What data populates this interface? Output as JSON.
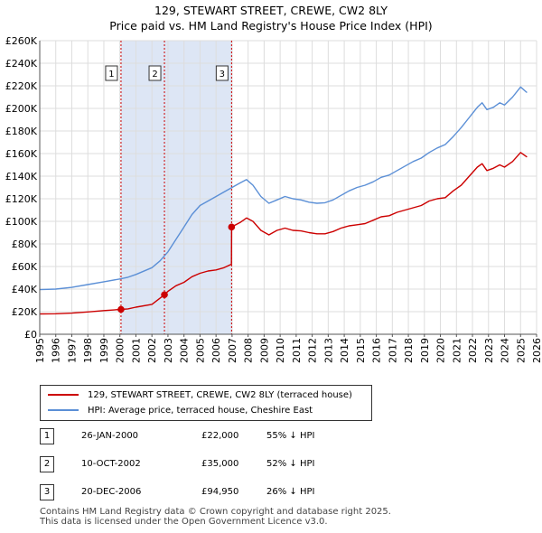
{
  "chart_data": {
    "type": "line",
    "title": "129, STEWART STREET, CREWE, CW2 8LY",
    "subtitle": "Price paid vs. HM Land Registry's House Price Index (HPI)",
    "x_ticks": [
      "1995",
      "1996",
      "1997",
      "1998",
      "1999",
      "2000",
      "2001",
      "2002",
      "2003",
      "2004",
      "2005",
      "2006",
      "2007",
      "2008",
      "2009",
      "2010",
      "2011",
      "2012",
      "2013",
      "2014",
      "2015",
      "2016",
      "2017",
      "2018",
      "2019",
      "2020",
      "2021",
      "2022",
      "2023",
      "2024",
      "2025",
      "2026"
    ],
    "y_ticks": [
      "£0",
      "£20K",
      "£40K",
      "£60K",
      "£80K",
      "£100K",
      "£120K",
      "£140K",
      "£160K",
      "£180K",
      "£200K",
      "£220K",
      "£240K",
      "£260K"
    ],
    "xlim": [
      1995,
      2026
    ],
    "ylim": [
      0,
      260000
    ],
    "grid": true,
    "colors": {
      "property": "#cc0000",
      "hpi": "#5b8fd6",
      "shade": "#dde6f5",
      "grid": "#dddddd"
    },
    "series": [
      {
        "name": "129, STEWART STREET, CREWE, CW2 8LY (terraced house)",
        "color": "#cc0000",
        "points": [
          [
            1995.0,
            18000
          ],
          [
            1996.0,
            18200
          ],
          [
            1997.0,
            18700
          ],
          [
            1998.0,
            19800
          ],
          [
            1999.0,
            21000
          ],
          [
            2000.07,
            22000
          ],
          [
            2000.5,
            22500
          ],
          [
            2001.0,
            24000
          ],
          [
            2002.0,
            26500
          ],
          [
            2002.78,
            35000
          ],
          [
            2003.0,
            38000
          ],
          [
            2003.5,
            43000
          ],
          [
            2004.0,
            46000
          ],
          [
            2004.5,
            51000
          ],
          [
            2005.0,
            54000
          ],
          [
            2005.5,
            56000
          ],
          [
            2006.0,
            57000
          ],
          [
            2006.5,
            59000
          ],
          [
            2006.96,
            62000
          ],
          [
            2006.97,
            94950
          ],
          [
            2007.5,
            99000
          ],
          [
            2007.9,
            103000
          ],
          [
            2008.3,
            100000
          ],
          [
            2008.8,
            92000
          ],
          [
            2009.3,
            88000
          ],
          [
            2009.8,
            92000
          ],
          [
            2010.3,
            94000
          ],
          [
            2010.8,
            92000
          ],
          [
            2011.3,
            91500
          ],
          [
            2011.8,
            90000
          ],
          [
            2012.3,
            89000
          ],
          [
            2012.8,
            89000
          ],
          [
            2013.3,
            91000
          ],
          [
            2013.8,
            94000
          ],
          [
            2014.3,
            96000
          ],
          [
            2014.8,
            97000
          ],
          [
            2015.3,
            98000
          ],
          [
            2015.8,
            101000
          ],
          [
            2016.3,
            104000
          ],
          [
            2016.8,
            105000
          ],
          [
            2017.3,
            108000
          ],
          [
            2017.8,
            110000
          ],
          [
            2018.3,
            112000
          ],
          [
            2018.8,
            114000
          ],
          [
            2019.3,
            118000
          ],
          [
            2019.8,
            120000
          ],
          [
            2020.3,
            121000
          ],
          [
            2020.8,
            127000
          ],
          [
            2021.3,
            132000
          ],
          [
            2021.8,
            140000
          ],
          [
            2022.3,
            148000
          ],
          [
            2022.6,
            151000
          ],
          [
            2022.9,
            145000
          ],
          [
            2023.3,
            147000
          ],
          [
            2023.7,
            150000
          ],
          [
            2024.0,
            148000
          ],
          [
            2024.5,
            153000
          ],
          [
            2025.0,
            161000
          ],
          [
            2025.4,
            157000
          ]
        ]
      },
      {
        "name": "HPI: Average price, terraced house, Cheshire East",
        "color": "#5b8fd6",
        "points": [
          [
            1995.0,
            39500
          ],
          [
            1996.0,
            40000
          ],
          [
            1997.0,
            41500
          ],
          [
            1998.0,
            44000
          ],
          [
            1999.0,
            46500
          ],
          [
            2000.0,
            49000
          ],
          [
            2000.5,
            50500
          ],
          [
            2001.0,
            53000
          ],
          [
            2002.0,
            59000
          ],
          [
            2002.5,
            65000
          ],
          [
            2003.0,
            73000
          ],
          [
            2003.5,
            84000
          ],
          [
            2004.0,
            95000
          ],
          [
            2004.5,
            106000
          ],
          [
            2005.0,
            114000
          ],
          [
            2005.5,
            118000
          ],
          [
            2006.0,
            122000
          ],
          [
            2006.5,
            126000
          ],
          [
            2007.0,
            130000
          ],
          [
            2007.5,
            134000
          ],
          [
            2007.9,
            137000
          ],
          [
            2008.3,
            132000
          ],
          [
            2008.8,
            122000
          ],
          [
            2009.3,
            116000
          ],
          [
            2009.8,
            119000
          ],
          [
            2010.3,
            122000
          ],
          [
            2010.8,
            120000
          ],
          [
            2011.3,
            119000
          ],
          [
            2011.8,
            117000
          ],
          [
            2012.3,
            116000
          ],
          [
            2012.8,
            116500
          ],
          [
            2013.3,
            119000
          ],
          [
            2013.8,
            123000
          ],
          [
            2014.3,
            127000
          ],
          [
            2014.8,
            130000
          ],
          [
            2015.3,
            132000
          ],
          [
            2015.8,
            135000
          ],
          [
            2016.3,
            139000
          ],
          [
            2016.8,
            141000
          ],
          [
            2017.3,
            145000
          ],
          [
            2017.8,
            149000
          ],
          [
            2018.3,
            153000
          ],
          [
            2018.8,
            156000
          ],
          [
            2019.3,
            161000
          ],
          [
            2019.8,
            165000
          ],
          [
            2020.3,
            168000
          ],
          [
            2020.8,
            175000
          ],
          [
            2021.3,
            183000
          ],
          [
            2021.8,
            192000
          ],
          [
            2022.3,
            201000
          ],
          [
            2022.6,
            205000
          ],
          [
            2022.9,
            199000
          ],
          [
            2023.3,
            201000
          ],
          [
            2023.7,
            205000
          ],
          [
            2024.0,
            203000
          ],
          [
            2024.5,
            210000
          ],
          [
            2025.0,
            219000
          ],
          [
            2025.4,
            214000
          ]
        ]
      }
    ],
    "transactions": [
      {
        "label": "1",
        "x": 2000.07,
        "y": 22000,
        "date": "26-JAN-2000",
        "price": "£22,000",
        "hpi": "55% ↓ HPI"
      },
      {
        "label": "2",
        "x": 2002.78,
        "y": 35000,
        "date": "10-OCT-2002",
        "price": "£35,000",
        "hpi": "52% ↓ HPI"
      },
      {
        "label": "3",
        "x": 2006.97,
        "y": 94950,
        "date": "20-DEC-2006",
        "price": "£94,950",
        "hpi": "26% ↓ HPI"
      }
    ]
  },
  "legend": {
    "property": "129, STEWART STREET, CREWE, CW2 8LY (terraced house)",
    "hpi": "HPI: Average price, terraced house, Cheshire East"
  },
  "footer": {
    "line1": "Contains HM Land Registry data © Crown copyright and database right 2025.",
    "line2": "This data is licensed under the Open Government Licence v3.0."
  }
}
